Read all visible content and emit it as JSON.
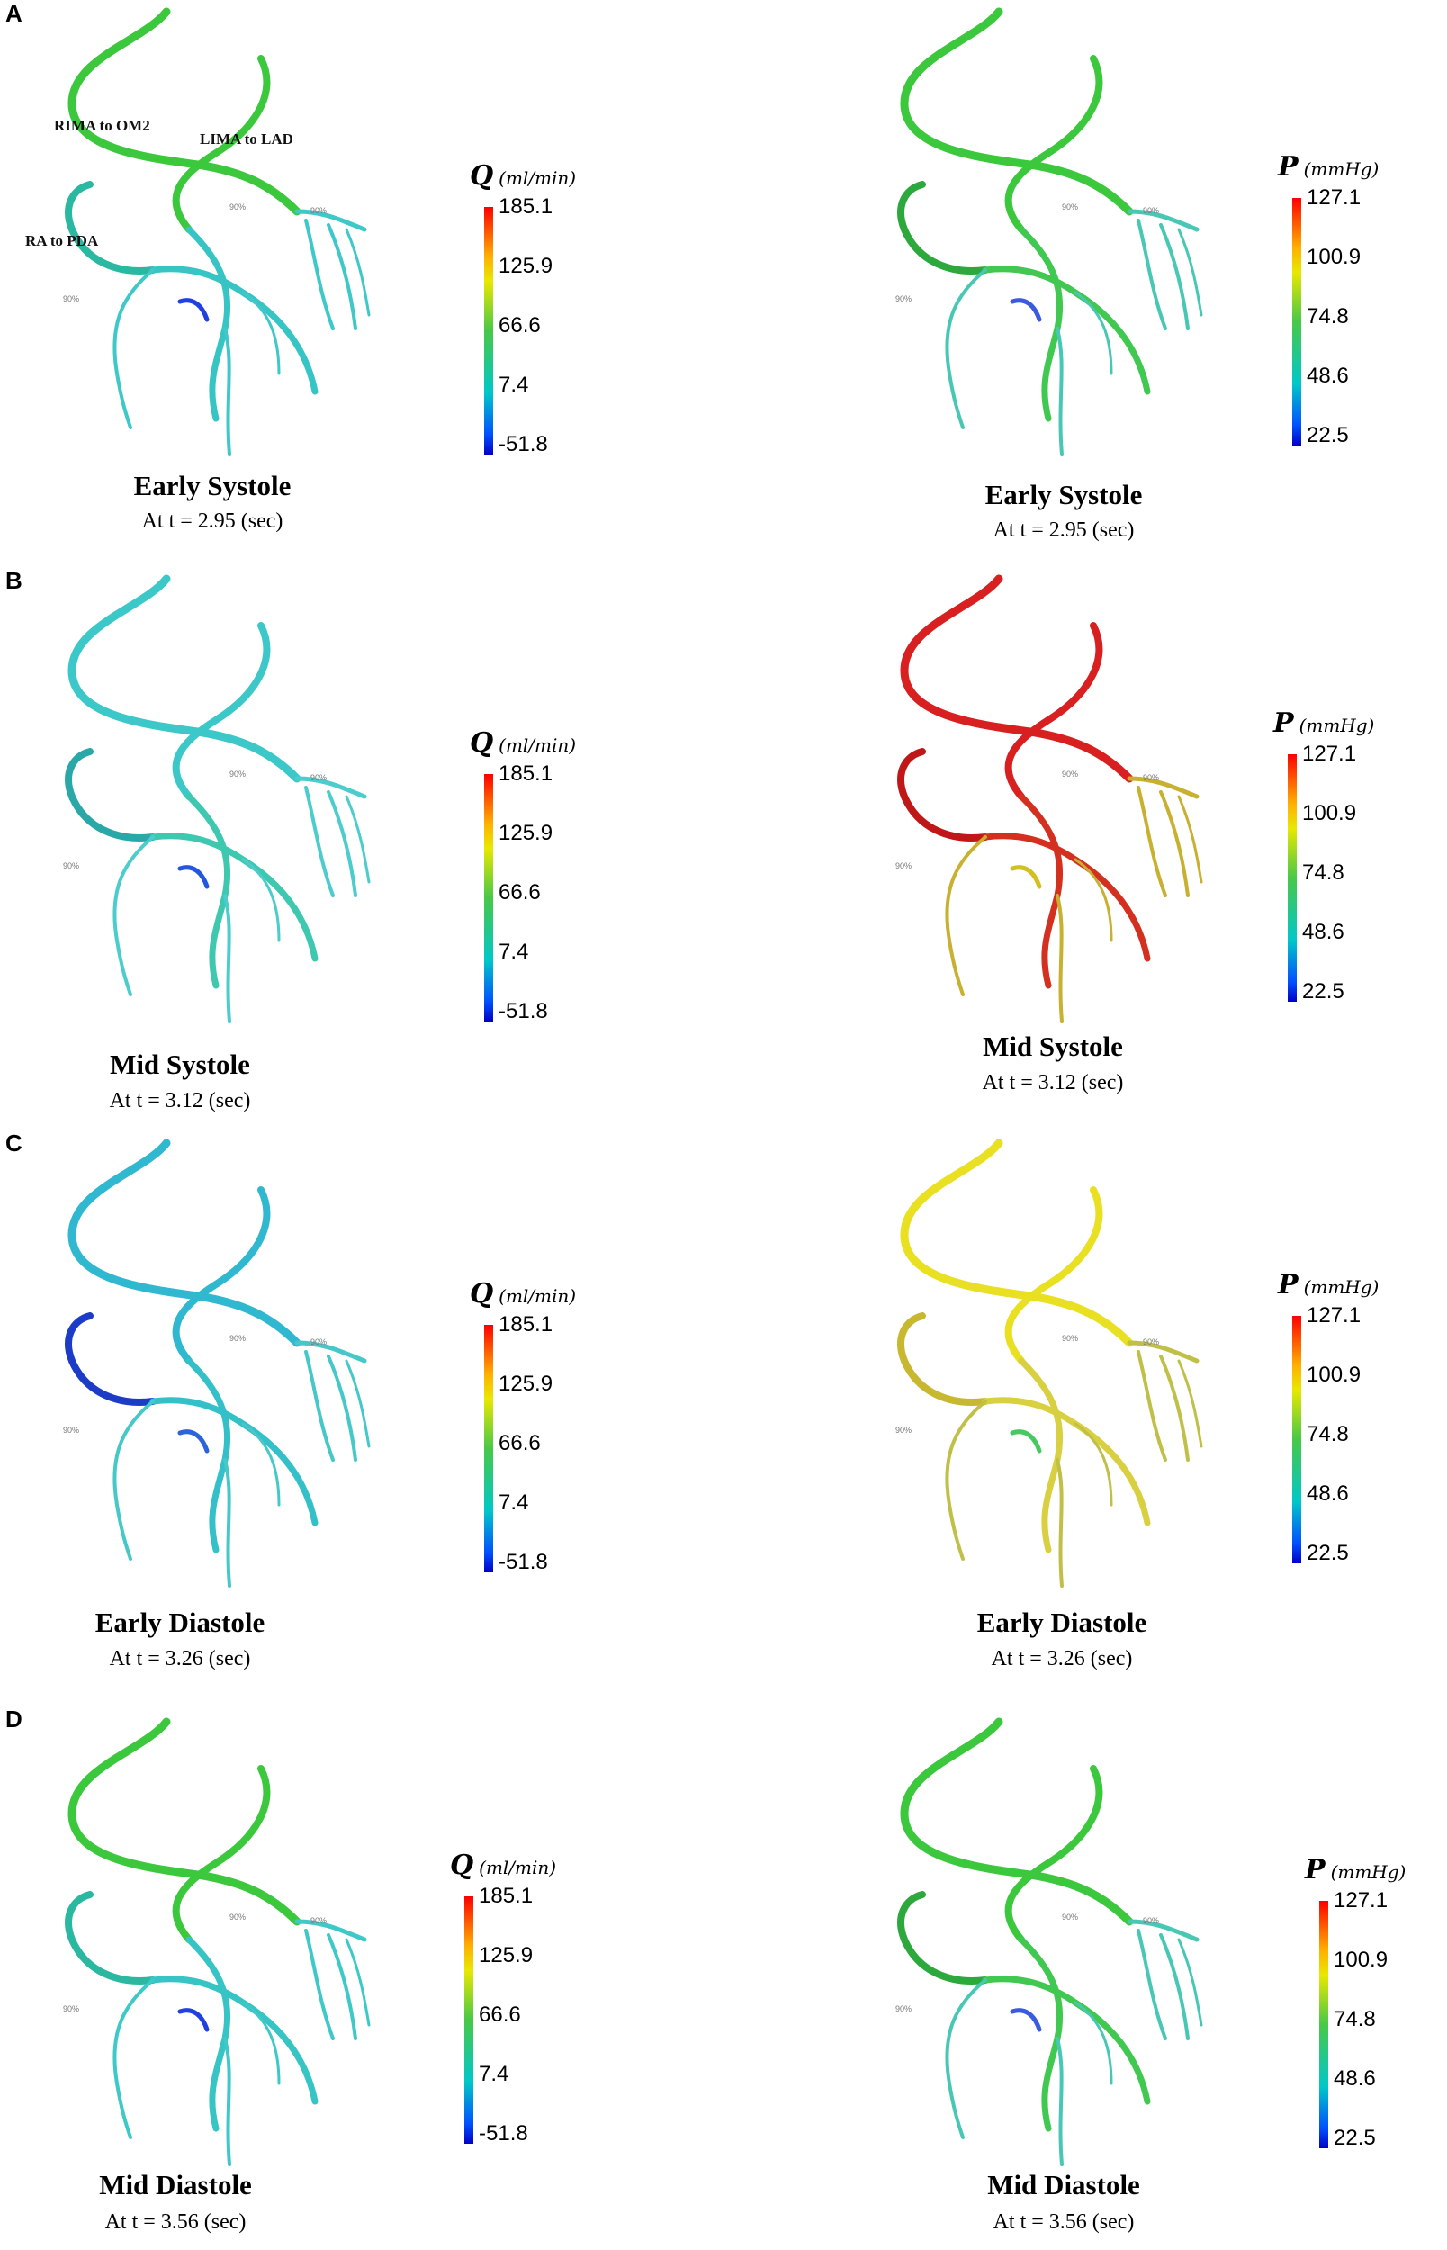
{
  "panels": [
    {
      "letter": "A",
      "phase": "Early Systole",
      "time": "At t = 2.95 (sec)",
      "flow_colors": {
        "main": "#3cc83c",
        "right": "#2ab8a0",
        "mid": "#36c4c4",
        "branches": "#3ec8c8",
        "accent": "#2040e0"
      },
      "pressure_colors": {
        "main": "#3cc83c",
        "right": "#2ca83c",
        "mid": "#40c850",
        "branches": "#48c8b4",
        "accent": "#3a5ae0"
      }
    },
    {
      "letter": "B",
      "phase": "Mid Systole",
      "time": "At t = 3.12 (sec)",
      "flow_colors": {
        "main": "#3cc8c8",
        "right": "#2aa8a8",
        "mid": "#3ec8b0",
        "branches": "#4ccccc",
        "accent": "#2456e0"
      },
      "pressure_colors": {
        "main": "#d82020",
        "right": "#c01818",
        "mid": "#d43020",
        "branches": "#c8b030",
        "accent": "#d0c020"
      }
    },
    {
      "letter": "C",
      "phase": "Early Diastole",
      "time": "At t = 3.26 (sec)",
      "flow_colors": {
        "main": "#30b8d0",
        "right": "#1c3cc8",
        "mid": "#34c0c8",
        "branches": "#46c8c8",
        "accent": "#2a64d8"
      },
      "pressure_colors": {
        "main": "#e8e020",
        "right": "#c8b830",
        "mid": "#d8d040",
        "branches": "#c0c048",
        "accent": "#48c860"
      }
    },
    {
      "letter": "D",
      "phase": "Mid Diastole",
      "time": "At t = 3.56 (sec)",
      "flow_colors": {
        "main": "#3cc83c",
        "right": "#2ab8a0",
        "mid": "#36c4c4",
        "branches": "#3ec8c8",
        "accent": "#2040e0"
      },
      "pressure_colors": {
        "main": "#3cc83c",
        "right": "#2ca83c",
        "mid": "#40c850",
        "branches": "#48c8b4",
        "accent": "#3a5ae0"
      }
    }
  ],
  "flow_scale": {
    "symbol": "Q",
    "unit": "(ml/min)",
    "ticks": [
      "185.1",
      "125.9",
      "66.6",
      "7.4",
      "-51.8"
    ]
  },
  "pressure_scale": {
    "symbol": "P",
    "unit": "(mmHg)",
    "ticks": [
      "127.1",
      "100.9",
      "74.8",
      "48.6",
      "22.5"
    ]
  },
  "branch_labels": {
    "rima": "RIMA to OM2",
    "lima": "LIMA to LAD",
    "ra": "RA to PDA",
    "stenosis": "90%"
  }
}
